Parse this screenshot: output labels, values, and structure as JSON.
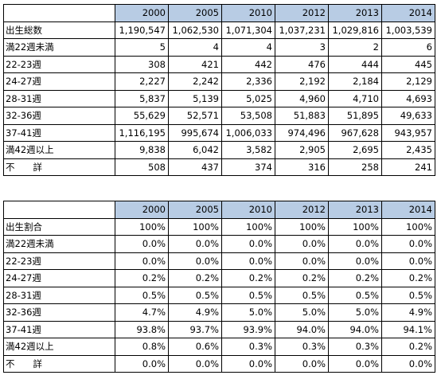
{
  "counts_table": {
    "years": [
      "2000",
      "2005",
      "2010",
      "2012",
      "2013",
      "2014"
    ],
    "rows": [
      {
        "label": "出生総数",
        "values": [
          "1,190,547",
          "1,062,530",
          "1,071,304",
          "1,037,231",
          "1,029,816",
          "1,003,539"
        ]
      },
      {
        "label": "満22週未満",
        "values": [
          "5",
          "4",
          "4",
          "3",
          "2",
          "6"
        ]
      },
      {
        "label": "22-23週",
        "values": [
          "308",
          "421",
          "442",
          "476",
          "444",
          "445"
        ]
      },
      {
        "label": "24-27週",
        "values": [
          "2,227",
          "2,242",
          "2,336",
          "2,192",
          "2,184",
          "2,129"
        ]
      },
      {
        "label": "28-31週",
        "values": [
          "5,837",
          "5,139",
          "5,025",
          "4,960",
          "4,710",
          "4,693"
        ]
      },
      {
        "label": "32-36週",
        "values": [
          "55,629",
          "52,571",
          "53,508",
          "51,883",
          "51,895",
          "49,633"
        ]
      },
      {
        "label": "37-41週",
        "values": [
          "1,116,195",
          "995,674",
          "1,006,033",
          "974,496",
          "967,628",
          "943,957"
        ]
      },
      {
        "label": "満42週以上",
        "values": [
          "9,838",
          "6,042",
          "3,582",
          "2,905",
          "2,695",
          "2,435"
        ]
      },
      {
        "label": "不　　詳",
        "values": [
          "508",
          "437",
          "374",
          "316",
          "258",
          "241"
        ]
      }
    ]
  },
  "ratio_table": {
    "years": [
      "2000",
      "2005",
      "2010",
      "2012",
      "2013",
      "2014"
    ],
    "rows": [
      {
        "label": "出生割合",
        "values": [
          "100%",
          "100%",
          "100%",
          "100%",
          "100%",
          "100%"
        ]
      },
      {
        "label": "満22週未満",
        "values": [
          "0.0%",
          "0.0%",
          "0.0%",
          "0.0%",
          "0.0%",
          "0.0%"
        ]
      },
      {
        "label": "22-23週",
        "values": [
          "0.0%",
          "0.0%",
          "0.0%",
          "0.0%",
          "0.0%",
          "0.0%"
        ]
      },
      {
        "label": "24-27週",
        "values": [
          "0.2%",
          "0.2%",
          "0.2%",
          "0.2%",
          "0.2%",
          "0.2%"
        ]
      },
      {
        "label": "28-31週",
        "values": [
          "0.5%",
          "0.5%",
          "0.5%",
          "0.5%",
          "0.5%",
          "0.5%"
        ]
      },
      {
        "label": "32-36週",
        "values": [
          "4.7%",
          "4.9%",
          "5.0%",
          "5.0%",
          "5.0%",
          "4.9%"
        ]
      },
      {
        "label": "37-41週",
        "values": [
          "93.8%",
          "93.7%",
          "93.9%",
          "94.0%",
          "94.0%",
          "94.1%"
        ]
      },
      {
        "label": "満42週以上",
        "values": [
          "0.8%",
          "0.6%",
          "0.3%",
          "0.3%",
          "0.3%",
          "0.2%"
        ]
      },
      {
        "label": "不　　詳",
        "values": [
          "0.0%",
          "0.0%",
          "0.0%",
          "0.0%",
          "0.0%",
          "0.0%"
        ]
      }
    ]
  },
  "colors": {
    "header_fill": "#b8cce4",
    "grid_line": "#000000"
  }
}
